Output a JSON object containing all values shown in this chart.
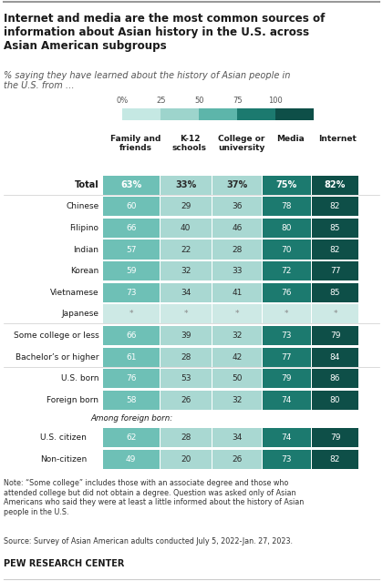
{
  "title": "Internet and media are the most common sources of\ninformation about Asian history in the U.S. across\nAsian American subgroups",
  "subtitle": "% saying they have learned about the history of Asian people in\nthe U.S. from …",
  "col_headers": [
    "Family and\nfriends",
    "K-12\nschools",
    "College or\nuniversity",
    "Media",
    "Internet"
  ],
  "rows": [
    {
      "label": "Total",
      "values": [
        "63%",
        "33%",
        "37%",
        "75%",
        "82%"
      ],
      "bold": true,
      "indent": false,
      "italic_label": false,
      "header_row": false,
      "sep_above": false,
      "star_row": false
    },
    {
      "label": "Chinese",
      "values": [
        "60",
        "29",
        "36",
        "78",
        "82"
      ],
      "bold": false,
      "indent": false,
      "italic_label": false,
      "header_row": false,
      "sep_above": true,
      "star_row": false
    },
    {
      "label": "Filipino",
      "values": [
        "66",
        "40",
        "46",
        "80",
        "85"
      ],
      "bold": false,
      "indent": false,
      "italic_label": false,
      "header_row": false,
      "sep_above": false,
      "star_row": false
    },
    {
      "label": "Indian",
      "values": [
        "57",
        "22",
        "28",
        "70",
        "82"
      ],
      "bold": false,
      "indent": false,
      "italic_label": false,
      "header_row": false,
      "sep_above": false,
      "star_row": false
    },
    {
      "label": "Korean",
      "values": [
        "59",
        "32",
        "33",
        "72",
        "77"
      ],
      "bold": false,
      "indent": false,
      "italic_label": false,
      "header_row": false,
      "sep_above": false,
      "star_row": false
    },
    {
      "label": "Vietnamese",
      "values": [
        "73",
        "34",
        "41",
        "76",
        "85"
      ],
      "bold": false,
      "indent": false,
      "italic_label": false,
      "header_row": false,
      "sep_above": false,
      "star_row": false
    },
    {
      "label": "Japanese",
      "values": [
        "*",
        "*",
        "*",
        "*",
        "*"
      ],
      "bold": false,
      "indent": false,
      "italic_label": false,
      "header_row": false,
      "sep_above": false,
      "star_row": true
    },
    {
      "label": "Some college or less",
      "values": [
        "66",
        "39",
        "32",
        "73",
        "79"
      ],
      "bold": false,
      "indent": false,
      "italic_label": false,
      "header_row": false,
      "sep_above": true,
      "star_row": false
    },
    {
      "label": "Bachelor’s or higher",
      "values": [
        "61",
        "28",
        "42",
        "77",
        "84"
      ],
      "bold": false,
      "indent": false,
      "italic_label": false,
      "header_row": false,
      "sep_above": false,
      "star_row": false
    },
    {
      "label": "U.S. born",
      "values": [
        "76",
        "53",
        "50",
        "79",
        "86"
      ],
      "bold": false,
      "indent": false,
      "italic_label": false,
      "header_row": false,
      "sep_above": true,
      "star_row": false
    },
    {
      "label": "Foreign born",
      "values": [
        "58",
        "26",
        "32",
        "74",
        "80"
      ],
      "bold": false,
      "indent": false,
      "italic_label": false,
      "header_row": false,
      "sep_above": false,
      "star_row": false
    },
    {
      "label": "Among foreign born:",
      "values": null,
      "bold": false,
      "indent": false,
      "italic_label": true,
      "header_row": true,
      "sep_above": false,
      "star_row": false
    },
    {
      "label": "U.S. citizen",
      "values": [
        "62",
        "28",
        "34",
        "74",
        "79"
      ],
      "bold": false,
      "indent": true,
      "italic_label": false,
      "header_row": false,
      "sep_above": false,
      "star_row": false
    },
    {
      "label": "Non-citizen",
      "values": [
        "49",
        "20",
        "26",
        "73",
        "82"
      ],
      "bold": false,
      "indent": true,
      "italic_label": false,
      "header_row": false,
      "sep_above": false,
      "star_row": false
    }
  ],
  "note": "Note: “Some college” includes those with an associate degree and those who\nattended college but did not obtain a degree. Question was asked only of Asian\nAmericans who said they were at least a little informed about the history of Asian\npeople in the U.S.",
  "source": "Source: Survey of Asian American adults conducted July 5, 2022-Jan. 27, 2023.",
  "org": "PEW RESEARCH CENTER",
  "col_bg": [
    "#6ec0b6",
    "#a9d8d2",
    "#a9d8d2",
    "#1c7a6f",
    "#0e4f48"
  ],
  "col_text": [
    "#ffffff",
    "#2a2a2a",
    "#2a2a2a",
    "#ffffff",
    "#ffffff"
  ],
  "star_bg": [
    "#cde9e5",
    "#cde9e5",
    "#cde9e5",
    "#cde9e5",
    "#cde9e5"
  ],
  "star_text": "#888888",
  "scale_colors": [
    "#c5e8e3",
    "#9dd4cc",
    "#5db5aa",
    "#1c7a6f",
    "#0e4f48"
  ],
  "sep_color": "#cccccc",
  "bg_color": "#ffffff",
  "text_dark": "#1a1a1a",
  "text_gray": "#555555"
}
